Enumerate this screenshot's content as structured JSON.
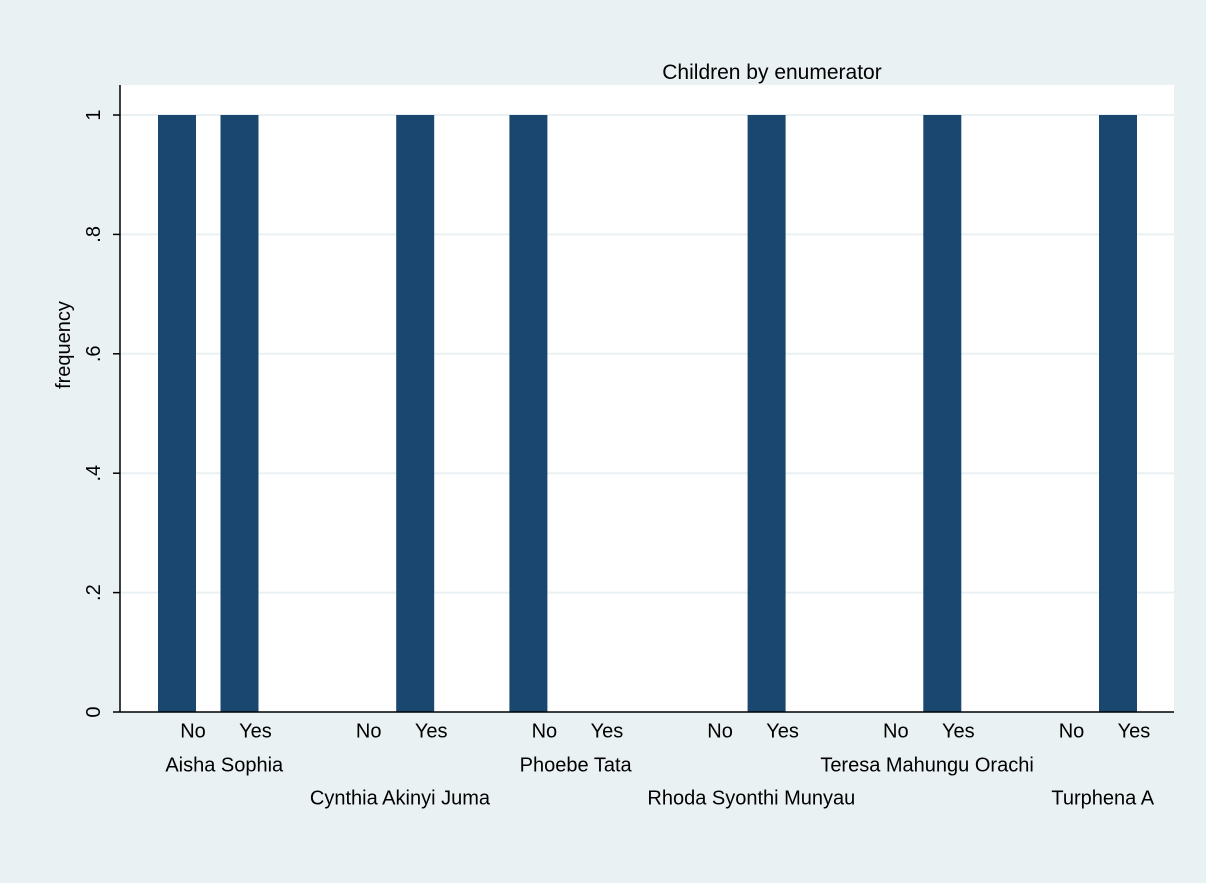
{
  "chart_data": {
    "type": "bar",
    "title": "Children by enumerator",
    "ylabel": "frequency",
    "xlabel": "",
    "ylim": [
      0,
      1
    ],
    "yticks": [
      {
        "value": 0,
        "label": "0"
      },
      {
        "value": 0.2,
        "label": ".2"
      },
      {
        "value": 0.4,
        "label": ".4"
      },
      {
        "value": 0.6,
        "label": ".6"
      },
      {
        "value": 0.8,
        "label": ".8"
      },
      {
        "value": 1,
        "label": "1"
      }
    ],
    "grid": true,
    "bar_color": "#1A476F",
    "groups": [
      {
        "name": "Aisha Sophia",
        "bars": [
          {
            "label": "No",
            "value": 1
          },
          {
            "label": "Yes",
            "value": 1
          }
        ]
      },
      {
        "name": "Cynthia Akinyi Juma",
        "bars": [
          {
            "label": "No",
            "value": 0
          },
          {
            "label": "Yes",
            "value": 1
          }
        ]
      },
      {
        "name": "Phoebe Tata",
        "bars": [
          {
            "label": "No",
            "value": 1
          },
          {
            "label": "Yes",
            "value": 0
          }
        ]
      },
      {
        "name": "Rhoda Syonthi Munyau",
        "bars": [
          {
            "label": "No",
            "value": 0
          },
          {
            "label": "Yes",
            "value": 1
          }
        ]
      },
      {
        "name": "Teresa Mahungu Orachi",
        "bars": [
          {
            "label": "No",
            "value": 0
          },
          {
            "label": "Yes",
            "value": 1
          }
        ]
      },
      {
        "name": "Turphena A",
        "bars": [
          {
            "label": "No",
            "value": 0
          },
          {
            "label": "Yes",
            "value": 1
          }
        ]
      }
    ]
  },
  "colors": {
    "background": "#EAF1F3",
    "plot_background": "#FFFFFF",
    "gridline": "#EAF1F3",
    "bar": "#1A476F",
    "axis": "#000000"
  }
}
